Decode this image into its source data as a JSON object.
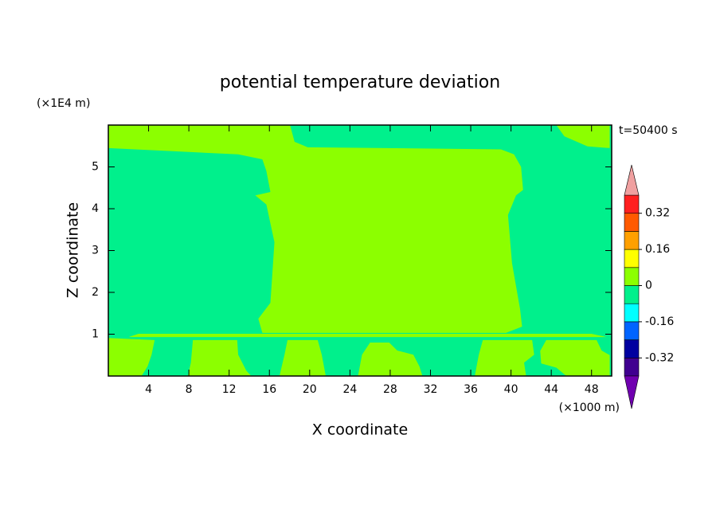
{
  "chart_data": {
    "type": "contour",
    "title": "potential temperature deviation",
    "time_label": "t=50400 s",
    "x_label": "X coordinate",
    "x_unit": "(×1000 m)",
    "y_label": "Z coordinate",
    "y_unit": "(×1E4 m)",
    "xlim": [
      0,
      50
    ],
    "ylim": [
      0,
      6
    ],
    "xticks": [
      4,
      8,
      12,
      16,
      20,
      24,
      28,
      32,
      36,
      40,
      44,
      48
    ],
    "yticks": [
      1,
      2,
      3,
      4,
      5
    ],
    "background_color": "#00f08c",
    "regions": [
      {
        "color": "#8cff00",
        "x": [
          0,
          18.05,
          18.5,
          19.8,
          39,
          40.3,
          41,
          41.2,
          40.5,
          39.7,
          40.1,
          40.9,
          41.1,
          39.5,
          26,
          15.3,
          14.9,
          16.1,
          16.5,
          15.7,
          14.6,
          16.1,
          15.7,
          15.3,
          12.9,
          0
        ],
        "y": [
          6,
          6,
          5.6,
          5.47,
          5.42,
          5.3,
          5.0,
          4.45,
          4.32,
          3.85,
          2.7,
          1.6,
          1.18,
          1.03,
          1.03,
          1.03,
          1.37,
          1.75,
          3.2,
          4.1,
          4.32,
          4.4,
          4.9,
          5.18,
          5.3,
          5.45
        ]
      },
      {
        "color": "#8cff00",
        "x": [
          44.5,
          49.8,
          49.8,
          47.6,
          45.3
        ],
        "y": [
          6,
          6,
          5.45,
          5.49,
          5.73
        ]
      },
      {
        "color": "#8cff00",
        "x": [
          3,
          48,
          49.5,
          2
        ],
        "y": [
          1.01,
          1.01,
          0.93,
          0.93
        ]
      },
      {
        "color": "#8cff00",
        "x": [
          0,
          4.6,
          4.3,
          3.9,
          3.3,
          0
        ],
        "y": [
          0.91,
          0.86,
          0.51,
          0.23,
          0,
          0
        ]
      },
      {
        "color": "#8cff00",
        "x": [
          8.4,
          12.8,
          12.9,
          13.7,
          14.2,
          7.9,
          8.2
        ],
        "y": [
          0.86,
          0.86,
          0.51,
          0.13,
          0,
          0,
          0.32
        ]
      },
      {
        "color": "#8cff00",
        "x": [
          17.8,
          20.8,
          21.2,
          21.6,
          17,
          17.5
        ],
        "y": [
          0.86,
          0.86,
          0.51,
          0,
          0,
          0.51
        ]
      },
      {
        "color": "#8cff00",
        "x": [
          26,
          27.9,
          28.7,
          30.3,
          30.9,
          31.2,
          24.8,
          25.2
        ],
        "y": [
          0.8,
          0.8,
          0.61,
          0.51,
          0.23,
          0,
          0,
          0.51
        ]
      },
      {
        "color": "#8cff00",
        "x": [
          37.2,
          42.1,
          42.3,
          41.3,
          41.5,
          36.4,
          36.8
        ],
        "y": [
          0.86,
          0.86,
          0.51,
          0.32,
          0,
          0,
          0.51
        ]
      },
      {
        "color": "#8cff00",
        "x": [
          43.5,
          48.5,
          49,
          49.8,
          49.8,
          45.5,
          44.5,
          43,
          42.9
        ],
        "y": [
          0.86,
          0.86,
          0.61,
          0.5,
          0,
          0,
          0.2,
          0.3,
          0.6
        ]
      }
    ],
    "colorbar": {
      "levels": [
        -0.4,
        -0.32,
        -0.24,
        -0.16,
        -0.08,
        0,
        0.08,
        0.16,
        0.24,
        0.32,
        0.4
      ],
      "colors": [
        "#400090",
        "#0000a0",
        "#0064ff",
        "#00ffff",
        "#00f08c",
        "#8cff00",
        "#ffff00",
        "#ffa000",
        "#ff5a00",
        "#ff2020"
      ],
      "under_color": "#7000b0",
      "over_color": "#f0a0a0",
      "ticks": [
        -0.32,
        -0.16,
        0,
        0.16,
        0.32
      ]
    }
  }
}
